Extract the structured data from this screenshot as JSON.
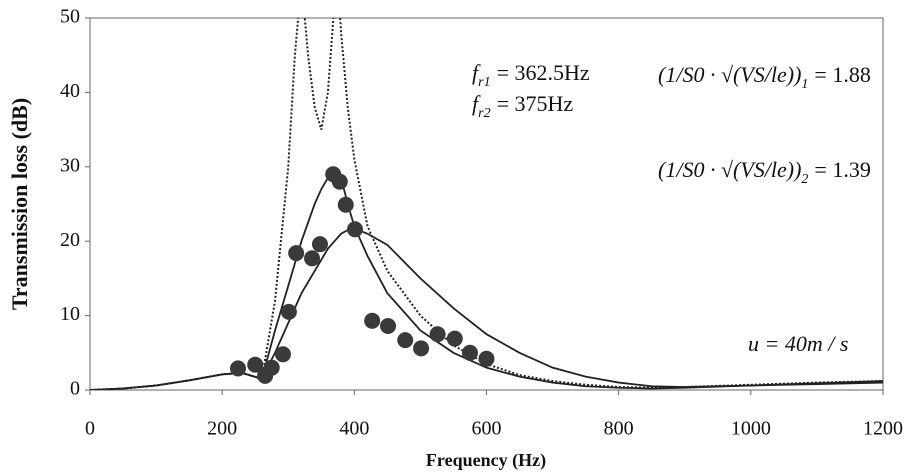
{
  "chart_data": {
    "type": "line",
    "x_label": "Frequency (Hz)",
    "y_label": "Transmission loss (dB)",
    "xlim": [
      0,
      1200
    ],
    "xticks": [
      0,
      200,
      400,
      600,
      800,
      1000,
      1200
    ],
    "ylim": [
      0,
      50
    ],
    "yticks": [
      0,
      10,
      20,
      30,
      40,
      50
    ],
    "x": [
      0,
      50,
      100,
      150,
      200,
      230,
      260,
      280,
      300,
      310,
      320,
      330,
      340,
      350,
      360,
      370,
      375,
      380,
      390,
      400,
      420,
      450,
      500,
      550,
      600,
      650,
      700,
      750,
      800,
      850,
      900,
      1000,
      1100,
      1200
    ],
    "series": [
      {
        "color": "#222222",
        "style": "solid",
        "values": [
          0,
          0.2,
          0.6,
          1.3,
          2.1,
          2.3,
          1.5,
          5,
          9,
          11,
          13,
          14.5,
          16,
          17.5,
          19,
          20,
          20.5,
          21,
          21.5,
          21.7,
          21,
          19.5,
          15,
          11,
          7.5,
          5,
          3,
          1.8,
          1,
          0.5,
          0.4,
          0.6,
          0.8,
          1.0
        ]
      },
      {
        "color": "#222222",
        "style": "solid",
        "values": [
          0,
          0.2,
          0.6,
          1.3,
          2.1,
          2.3,
          1.5,
          8,
          14,
          17,
          20,
          22.5,
          25,
          27,
          28.5,
          29,
          29,
          28.5,
          25,
          22,
          18,
          13,
          8,
          5,
          3,
          1.8,
          1,
          0.5,
          0.3,
          0.2,
          0.3,
          0.6,
          0.9,
          1.2
        ]
      },
      {
        "color": "#222222",
        "style": "dotted",
        "values": [
          0,
          0.2,
          0.6,
          1.3,
          2.1,
          2.3,
          1.5,
          12,
          30,
          45,
          55,
          45,
          38,
          35,
          40,
          52,
          55,
          48,
          38,
          31,
          22,
          16,
          10,
          6,
          3.5,
          2,
          1.2,
          0.7,
          0.4,
          0.3,
          0.4,
          0.7,
          1.0,
          1.2
        ]
      }
    ],
    "points": {
      "color": "#3a3a3a",
      "x": [
        224,
        250,
        265,
        275,
        292,
        301,
        312,
        336,
        348,
        368,
        378,
        387,
        401,
        427,
        451,
        477,
        501,
        526,
        552,
        575,
        600
      ],
      "values": [
        2.9,
        3.4,
        1.9,
        3.0,
        4.8,
        10.5,
        18.4,
        17.7,
        19.6,
        29.0,
        28.0,
        24.9,
        21.6,
        9.3,
        8.6,
        6.7,
        5.6,
        7.5,
        6.9,
        5.0,
        4.2
      ]
    },
    "annotations": [
      {
        "text": "f",
        "sub": "r1",
        "value": "= 362.5Hz"
      },
      {
        "text": "f",
        "sub": "r2",
        "value": "= 375Hz"
      },
      {
        "text": "(1/S0 · √(VS/le))",
        "sub": "1",
        "value": "= 1.88"
      },
      {
        "text": "(1/S0 · √(VS/le))",
        "sub": "2",
        "value": "= 1.39"
      },
      {
        "text": "u = 40m / s"
      }
    ]
  }
}
